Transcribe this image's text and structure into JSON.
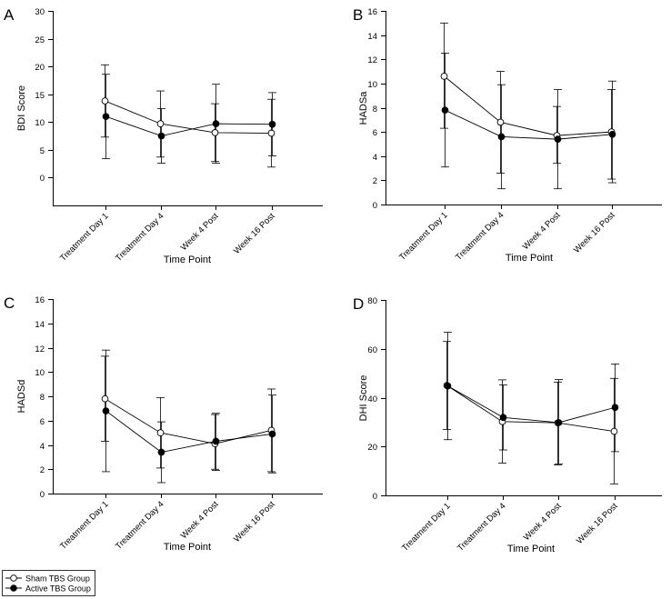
{
  "legend": {
    "sham": "Sham TBS Group",
    "active": "Active TBS Group"
  },
  "chart_data": [
    {
      "panel": "A",
      "type": "line",
      "categories": [
        "Treatment Day 1",
        "Treatment Day 4",
        "Week 4 Post",
        "Week 16 Post"
      ],
      "xlabel": "Time Point",
      "ylabel": "BDI Score",
      "ylim": [
        -5,
        30
      ],
      "yticks": [
        0,
        5,
        10,
        15,
        20,
        25,
        30
      ],
      "series": [
        {
          "name": "Sham TBS Group",
          "marker": "open-circle",
          "values": [
            13.8,
            9.7,
            8.1,
            8.0
          ],
          "err_low": [
            7.3,
            3.7,
            2.9,
            1.9
          ],
          "err_high": [
            20.3,
            15.6,
            13.3,
            14.1
          ]
        },
        {
          "name": "Active TBS Group",
          "marker": "filled-circle",
          "values": [
            11.0,
            7.5,
            9.7,
            9.6
          ],
          "err_low": [
            3.4,
            2.6,
            2.6,
            3.9
          ],
          "err_high": [
            18.6,
            12.4,
            16.8,
            15.3
          ]
        }
      ]
    },
    {
      "panel": "B",
      "type": "line",
      "categories": [
        "Treatment Day 1",
        "Treatment Day 4",
        "Week 4 Post",
        "Week 16 Post"
      ],
      "xlabel": "Time Point",
      "ylabel": "HADSa",
      "ylim": [
        0,
        16
      ],
      "yticks": [
        0,
        2,
        4,
        6,
        8,
        10,
        12,
        14,
        16
      ],
      "series": [
        {
          "name": "Sham TBS Group",
          "marker": "open-circle",
          "values": [
            10.6,
            6.8,
            5.7,
            6.0
          ],
          "err_low": [
            6.3,
            2.6,
            3.4,
            2.1
          ],
          "err_high": [
            15.0,
            11.0,
            8.1,
            9.5
          ]
        },
        {
          "name": "Active TBS Group",
          "marker": "filled-circle",
          "values": [
            7.8,
            5.6,
            5.4,
            5.8
          ],
          "err_low": [
            3.1,
            1.3,
            1.3,
            1.8
          ],
          "err_high": [
            12.5,
            9.9,
            9.5,
            10.2
          ]
        }
      ]
    },
    {
      "panel": "C",
      "type": "line",
      "categories": [
        "Treatment Day 1",
        "Treatment Day 4",
        "Week 4 Post",
        "Week 16 Post"
      ],
      "xlabel": "Time Point",
      "ylabel": "HADSd",
      "ylim": [
        0,
        16
      ],
      "yticks": [
        0,
        2,
        4,
        6,
        8,
        10,
        12,
        14,
        16
      ],
      "series": [
        {
          "name": "Sham TBS Group",
          "marker": "open-circle",
          "values": [
            7.8,
            5.0,
            4.1,
            5.2
          ],
          "err_low": [
            4.3,
            2.1,
            2.0,
            1.8
          ],
          "err_high": [
            11.3,
            7.9,
            6.5,
            8.6
          ]
        },
        {
          "name": "Active TBS Group",
          "marker": "filled-circle",
          "values": [
            6.8,
            3.4,
            4.3,
            4.9
          ],
          "err_low": [
            1.8,
            0.9,
            1.9,
            1.7
          ],
          "err_high": [
            11.8,
            5.9,
            6.6,
            8.1
          ]
        }
      ]
    },
    {
      "panel": "D",
      "type": "line",
      "categories": [
        "Treatment Day 1",
        "Treatment Day 4",
        "Week 4 Post",
        "Week 16 Post"
      ],
      "xlabel": "Time Point",
      "ylabel": "DHI Score",
      "ylim": [
        0,
        80
      ],
      "yticks": [
        0,
        20,
        40,
        60,
        80
      ],
      "series": [
        {
          "name": "Sham TBS Group",
          "marker": "open-circle",
          "values": [
            45.0,
            30.2,
            29.7,
            26.2
          ],
          "err_low": [
            27.0,
            13.2,
            12.5,
            4.7
          ],
          "err_high": [
            63.0,
            47.3,
            46.4,
            47.9
          ]
        },
        {
          "name": "Active TBS Group",
          "marker": "filled-circle",
          "values": [
            44.8,
            31.9,
            29.8,
            36.0
          ],
          "err_low": [
            22.8,
            18.6,
            12.9,
            17.9
          ],
          "err_high": [
            66.8,
            45.2,
            47.4,
            53.8
          ]
        }
      ]
    }
  ]
}
